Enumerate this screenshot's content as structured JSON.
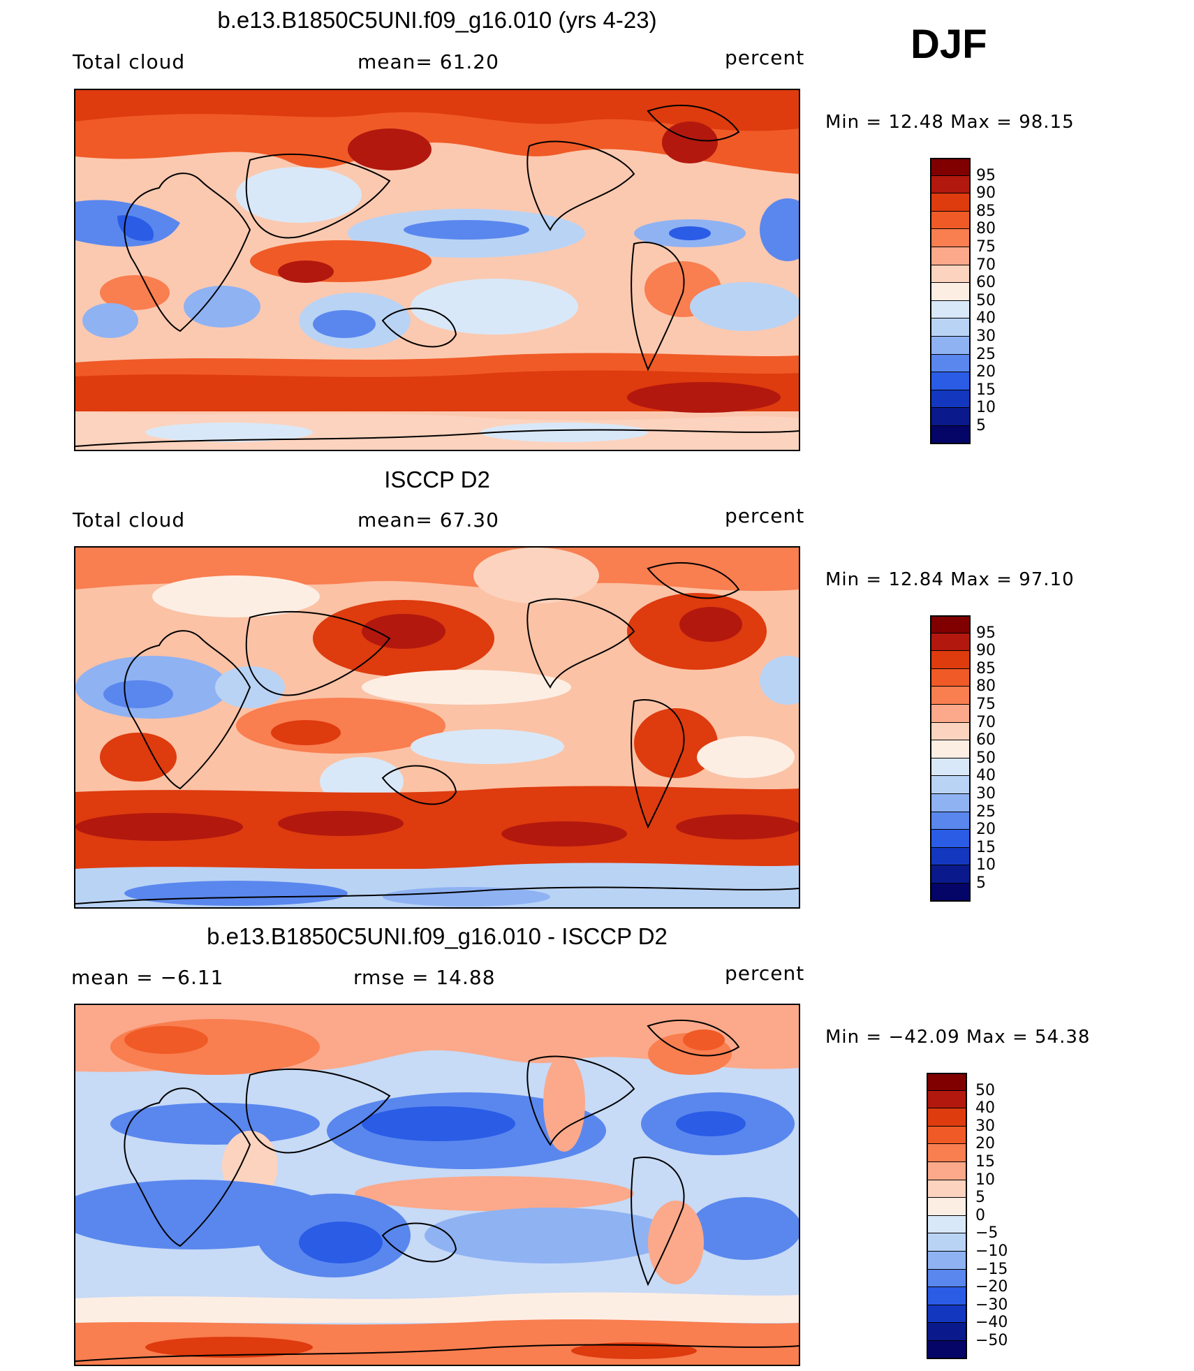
{
  "season": "DJF",
  "panels": [
    {
      "title": "b.e13.B1850C5UNI.f09_g16.010 (yrs 4-23)",
      "left_label": "Total cloud",
      "center_label": "mean=   61.20",
      "right_label": "percent",
      "min_max": "Min =   12.48  Max =   98.15",
      "colorbar_labels": [
        "95",
        "90",
        "85",
        "80",
        "75",
        "70",
        "60",
        "50",
        "40",
        "30",
        "25",
        "20",
        "15",
        "10",
        "5"
      ]
    },
    {
      "title": "ISCCP D2",
      "left_label": "Total cloud",
      "center_label": "mean=   67.30",
      "right_label": "percent",
      "min_max": "Min =   12.84  Max =   97.10",
      "colorbar_labels": [
        "95",
        "90",
        "85",
        "80",
        "75",
        "70",
        "60",
        "50",
        "40",
        "30",
        "25",
        "20",
        "15",
        "10",
        "5"
      ]
    },
    {
      "title": "b.e13.B1850C5UNI.f09_g16.010 - ISCCP D2",
      "left_label": "mean =   −6.11",
      "center_label": "rmse =   14.88",
      "right_label": "percent",
      "min_max": "Min = −42.09  Max =   54.38",
      "colorbar_labels": [
        "50",
        "40",
        "30",
        "20",
        "15",
        "10",
        "5",
        "0",
        "−5",
        "−10",
        "−15",
        "−20",
        "−30",
        "−40",
        "−50"
      ]
    }
  ],
  "colorbar_colors": [
    "#800000",
    "#b2180e",
    "#de3b0e",
    "#f05a26",
    "#f97e50",
    "#fba98a",
    "#fcd3be",
    "#fdeee4",
    "#d9e8f8",
    "#b9d3f5",
    "#8fb2f3",
    "#5a87ee",
    "#2a5ce6",
    "#1338bf",
    "#0a1a8c",
    "#040566"
  ],
  "map_colors": {
    "ocean_base_1": "#fbc9b0",
    "ocean_base_2": "#fbc2a5",
    "ocean_base_3": "#c7daf6",
    "coast": "#000000"
  }
}
